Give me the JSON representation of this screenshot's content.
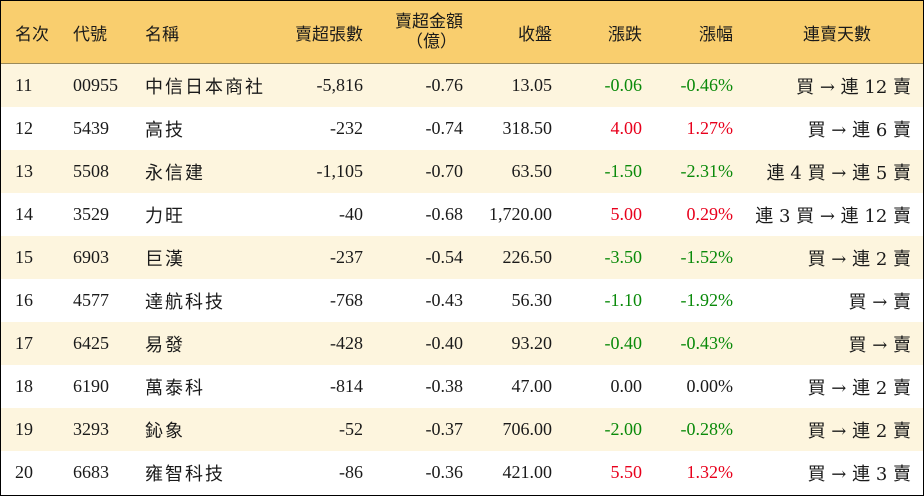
{
  "headers": {
    "rank": "名次",
    "code": "代號",
    "name": "名稱",
    "sell_shares": "賣超張數",
    "sell_amount_line1": "賣超金額",
    "sell_amount_line2": "（億）",
    "close": "收盤",
    "change": "漲跌",
    "change_pct": "漲幅",
    "consecutive": "連賣天數"
  },
  "colors": {
    "header_bg": "#f9ce6e",
    "row_alt_bg": "#fdf5de",
    "up": "#e8001c",
    "down": "#0a8a0a"
  },
  "rows": [
    {
      "rank": "11",
      "code": "00955",
      "name": "中信日本商社",
      "sell_shares": "-5,816",
      "sell_amount": "-0.76",
      "close": "13.05",
      "change": "-0.06",
      "change_pct": "-0.46%",
      "direction": "down",
      "consecutive": "買 → 連 12 賣"
    },
    {
      "rank": "12",
      "code": "5439",
      "name": "高技",
      "sell_shares": "-232",
      "sell_amount": "-0.74",
      "close": "318.50",
      "change": "4.00",
      "change_pct": "1.27%",
      "direction": "up",
      "consecutive": "買 → 連 6 賣"
    },
    {
      "rank": "13",
      "code": "5508",
      "name": "永信建",
      "sell_shares": "-1,105",
      "sell_amount": "-0.70",
      "close": "63.50",
      "change": "-1.50",
      "change_pct": "-2.31%",
      "direction": "down",
      "consecutive": "連 4 買 → 連 5 賣"
    },
    {
      "rank": "14",
      "code": "3529",
      "name": "力旺",
      "sell_shares": "-40",
      "sell_amount": "-0.68",
      "close": "1,720.00",
      "change": "5.00",
      "change_pct": "0.29%",
      "direction": "up",
      "consecutive": "連 3 買 → 連 12 賣"
    },
    {
      "rank": "15",
      "code": "6903",
      "name": "巨漢",
      "sell_shares": "-237",
      "sell_amount": "-0.54",
      "close": "226.50",
      "change": "-3.50",
      "change_pct": "-1.52%",
      "direction": "down",
      "consecutive": "買 → 連 2 賣"
    },
    {
      "rank": "16",
      "code": "4577",
      "name": "達航科技",
      "sell_shares": "-768",
      "sell_amount": "-0.43",
      "close": "56.30",
      "change": "-1.10",
      "change_pct": "-1.92%",
      "direction": "down",
      "consecutive": "買 → 賣"
    },
    {
      "rank": "17",
      "code": "6425",
      "name": "易發",
      "sell_shares": "-428",
      "sell_amount": "-0.40",
      "close": "93.20",
      "change": "-0.40",
      "change_pct": "-0.43%",
      "direction": "down",
      "consecutive": "買 → 賣"
    },
    {
      "rank": "18",
      "code": "6190",
      "name": "萬泰科",
      "sell_shares": "-814",
      "sell_amount": "-0.38",
      "close": "47.00",
      "change": "0.00",
      "change_pct": "0.00%",
      "direction": "flat",
      "consecutive": "買 → 連 2 賣"
    },
    {
      "rank": "19",
      "code": "3293",
      "name": "鈊象",
      "sell_shares": "-52",
      "sell_amount": "-0.37",
      "close": "706.00",
      "change": "-2.00",
      "change_pct": "-0.28%",
      "direction": "down",
      "consecutive": "買 → 連 2 賣"
    },
    {
      "rank": "20",
      "code": "6683",
      "name": "雍智科技",
      "sell_shares": "-86",
      "sell_amount": "-0.36",
      "close": "421.00",
      "change": "5.50",
      "change_pct": "1.32%",
      "direction": "up",
      "consecutive": "買 → 連 3 賣"
    }
  ]
}
